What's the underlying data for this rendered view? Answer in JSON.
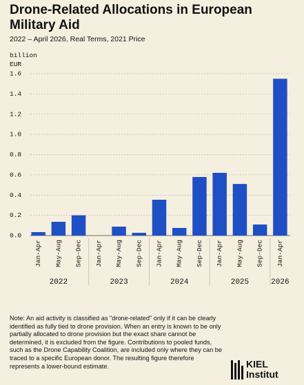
{
  "chart_data": {
    "type": "bar",
    "title": "Drone-Related Allocations in European Military Aid",
    "subtitle": "2022 – April 2026, Real Terms, 2021 Price",
    "y_label": "billion EUR",
    "color": "#1f4fc4",
    "ylim": [
      0,
      1.6
    ],
    "yticks": [
      {
        "value": 0,
        "label": "0.0"
      },
      0.2,
      0.4,
      0.6,
      0.8,
      {
        "value": 1,
        "label": "1.0"
      },
      1.2,
      1.4,
      1.6
    ],
    "grid": true,
    "groups": [
      {
        "label": "2022",
        "categories": [
          "Jan-Apr",
          "May-Aug",
          "Sep-Dec"
        ],
        "values": [
          0.034,
          0.136,
          0.2
        ]
      },
      {
        "label": "2023",
        "categories": [
          "Jan-Apr",
          "May-Aug",
          "Sep-Dec"
        ],
        "values": [
          0,
          0.088,
          0.027
        ]
      },
      {
        "label": "2024",
        "categories": [
          "Jan-Apr",
          "May-Aug",
          "Sep-Dec"
        ],
        "values": [
          0.354,
          0.075,
          0.579
        ]
      },
      {
        "label": "2025",
        "categories": [
          "Jan-Apr",
          "May-Aug",
          "Sep-Dec"
        ],
        "values": [
          0.62,
          0.51,
          0.109
        ]
      },
      {
        "label": "2026",
        "categories": [
          "Jan-Apr"
        ],
        "values": [
          1.55
        ]
      }
    ],
    "note": "Note: An aid activity is classified as \"drone-related\" only if it can be clearly identified as fully tied to drone provision. When an entry is known to be only partially allocated to drone provision but the exact share cannot be determined, it is excluded from the figure. Contributions to pooled funds, such as the Drone Capability Coalition, are included only where they can be traced to a specific European donor. The resulting figure therefore represents a lower-bound estimate.",
    "logo": [
      "KIEL",
      "Institut"
    ]
  }
}
